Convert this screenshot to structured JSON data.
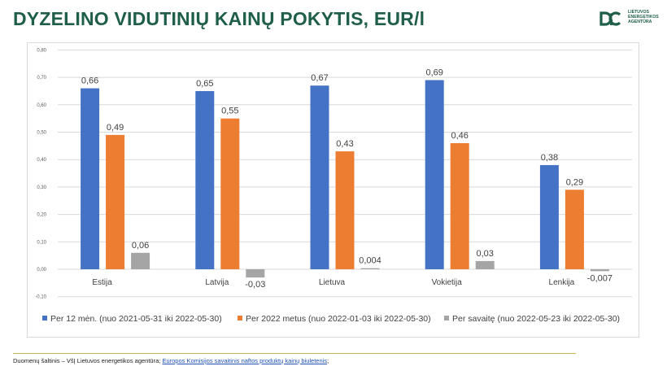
{
  "page": {
    "title": "DYZELINO VIDUTINIŲ KAINŲ POKYTIS, EUR/l"
  },
  "logo": {
    "lines": [
      "LIETUVOS",
      "ENERGETIKOS",
      "AGENTŪRA"
    ],
    "icon": "lea-logo-icon",
    "color": "#1f5f49"
  },
  "footer": {
    "source_prefix": "Duomenų šaltinis – VšĮ Lietuvos energetikos agentūra;",
    "link_text": "Europos Komisijos savaitinis naftos produktų kainų biuletenis",
    "suffix": ";"
  },
  "chart_data": {
    "type": "bar",
    "categories": [
      "Estija",
      "Latvija",
      "Lietuva",
      "Vokietija",
      "Lenkija"
    ],
    "series": [
      {
        "name": "Per 12 mėn. (nuo 2021-05-31 iki 2022-05-30)",
        "values": [
          0.66,
          0.65,
          0.67,
          0.69,
          0.38
        ],
        "labels": [
          "0,66",
          "0,65",
          "0,67",
          "0,69",
          "0,38"
        ],
        "color": "#4472c4"
      },
      {
        "name": "Per 2022 metus (nuo 2022-01-03 iki 2022-05-30)",
        "values": [
          0.49,
          0.55,
          0.43,
          0.46,
          0.29
        ],
        "labels": [
          "0,49",
          "0,55",
          "0,43",
          "0,46",
          "0,29"
        ],
        "color": "#ed7d31"
      },
      {
        "name": "Per savaitę (nuo 2022-05-23 iki 2022-05-30)",
        "values": [
          0.06,
          -0.03,
          0.004,
          0.03,
          -0.007
        ],
        "labels": [
          "0,06",
          "-0,03",
          "0,004",
          "0,03",
          "-0,007"
        ],
        "color": "#a5a5a5"
      }
    ],
    "ylim": [
      -0.1,
      0.8
    ],
    "yticks": [
      -0.1,
      0.0,
      0.1,
      0.2,
      0.3,
      0.4,
      0.5,
      0.6,
      0.7,
      0.8
    ],
    "ytick_labels": [
      "-0,10",
      "0,00",
      "0,10",
      "0,20",
      "0,30",
      "0,40",
      "0,50",
      "0,60",
      "0,70",
      "0,80"
    ],
    "grid": true,
    "legend_position": "bottom"
  }
}
